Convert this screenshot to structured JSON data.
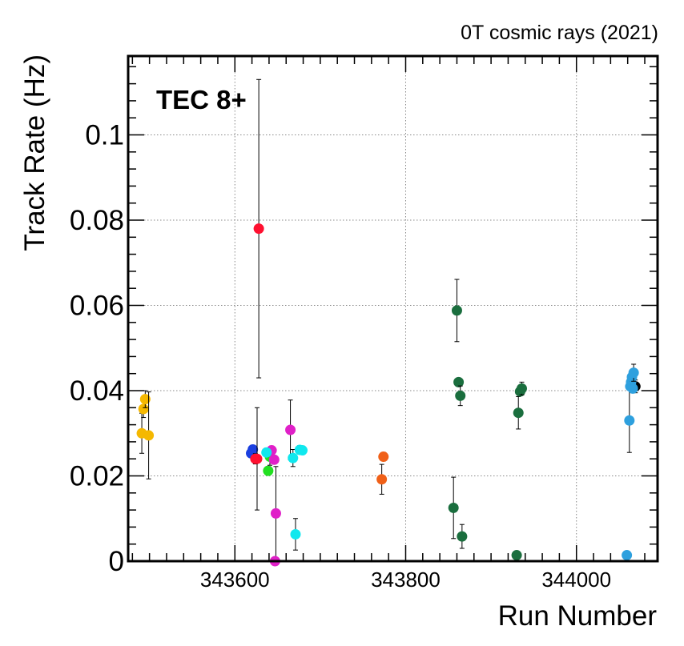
{
  "header": {
    "caption": "0T cosmic rays (2021)"
  },
  "panel_label": "TEC 8+",
  "chart_data": {
    "type": "scatter",
    "title": "",
    "xlabel": "Run Number",
    "ylabel": "Track Rate (Hz)",
    "xlim": [
      343475,
      344095
    ],
    "ylim": [
      0,
      0.1185
    ],
    "x_ticks": [
      343600,
      343800,
      344000
    ],
    "x_tick_labels": [
      "343600",
      "343800",
      "344000"
    ],
    "y_ticks": [
      0,
      0.02,
      0.04,
      0.06,
      0.08,
      0.1
    ],
    "y_tick_labels": [
      "0",
      "0.02",
      "0.04",
      "0.06",
      "0.08",
      "0.1"
    ],
    "grid": true,
    "legend": "none",
    "series": [
      {
        "color": "#f5b800",
        "points": [
          {
            "x": 343491,
            "y": 0.03,
            "err": 0.0047
          },
          {
            "x": 343493,
            "y": 0.0357,
            "err": 0.002
          },
          {
            "x": 343495,
            "y": 0.038,
            "err": 0.002
          },
          {
            "x": 343499,
            "y": 0.0295,
            "err": 0.0102
          }
        ]
      },
      {
        "color": "#1a3fe0",
        "points": [
          {
            "x": 343619,
            "y": 0.0253,
            "err": 0.001
          },
          {
            "x": 343621,
            "y": 0.0262,
            "err": 0.001
          }
        ]
      },
      {
        "color": "#ff1030",
        "points": [
          {
            "x": 343624,
            "y": 0.024,
            "err": 0.0012
          },
          {
            "x": 343626,
            "y": 0.024,
            "err": 0.012
          },
          {
            "x": 343628,
            "y": 0.078,
            "err": 0.035
          }
        ]
      },
      {
        "color": "#22e020",
        "points": [
          {
            "x": 343639,
            "y": 0.0212,
            "err": 0.001
          },
          {
            "x": 343641,
            "y": 0.0245,
            "err": 0.002
          }
        ]
      },
      {
        "color": "#e020c8",
        "points": [
          {
            "x": 343643,
            "y": 0.026,
            "err": 0.001
          },
          {
            "x": 343646,
            "y": 0.0238,
            "err": 0.001
          },
          {
            "x": 343648,
            "y": 0.0112,
            "err": 0.011
          },
          {
            "x": 343647,
            "y": 0.0,
            "err": 0.0
          },
          {
            "x": 343665,
            "y": 0.0308,
            "err": 0.007
          }
        ]
      },
      {
        "color": "#10e8ee",
        "points": [
          {
            "x": 343637,
            "y": 0.0255,
            "err": 0.001
          },
          {
            "x": 343668,
            "y": 0.0242,
            "err": 0.002
          },
          {
            "x": 343671,
            "y": 0.0063,
            "err": 0.0037
          },
          {
            "x": 343676,
            "y": 0.0261,
            "err": 0.001
          },
          {
            "x": 343679,
            "y": 0.026,
            "err": 0.001
          }
        ]
      },
      {
        "color": "#f06018",
        "points": [
          {
            "x": 343772,
            "y": 0.0192,
            "err": 0.0035
          },
          {
            "x": 343774,
            "y": 0.0245,
            "err": 0.001
          }
        ]
      },
      {
        "color": "#1a6e3e",
        "points": [
          {
            "x": 343856,
            "y": 0.0125,
            "err": 0.0072
          },
          {
            "x": 343860,
            "y": 0.0588,
            "err": 0.0073
          },
          {
            "x": 343862,
            "y": 0.042,
            "err": 0.001
          },
          {
            "x": 343864,
            "y": 0.0388,
            "err": 0.0023
          },
          {
            "x": 343866,
            "y": 0.0058,
            "err": 0.0028
          },
          {
            "x": 343930,
            "y": 0.0014,
            "err": 0.0007
          },
          {
            "x": 343932,
            "y": 0.0348,
            "err": 0.0038
          },
          {
            "x": 343934,
            "y": 0.0398,
            "err": 0.001
          },
          {
            "x": 343936,
            "y": 0.0405,
            "err": 0.0015
          }
        ]
      },
      {
        "color": "#000000",
        "points": [
          {
            "x": 344069,
            "y": 0.041,
            "err": 0.0015
          }
        ]
      },
      {
        "color": "#2ea0de",
        "points": [
          {
            "x": 344059,
            "y": 0.0014,
            "err": 0.0
          },
          {
            "x": 344062,
            "y": 0.033,
            "err": 0.0075
          },
          {
            "x": 344063,
            "y": 0.041,
            "err": 0.001
          },
          {
            "x": 344064,
            "y": 0.042,
            "err": 0.001
          },
          {
            "x": 344065,
            "y": 0.0432,
            "err": 0.001
          },
          {
            "x": 344067,
            "y": 0.0442,
            "err": 0.002
          },
          {
            "x": 344066,
            "y": 0.0405,
            "err": 0.001
          }
        ]
      }
    ]
  }
}
